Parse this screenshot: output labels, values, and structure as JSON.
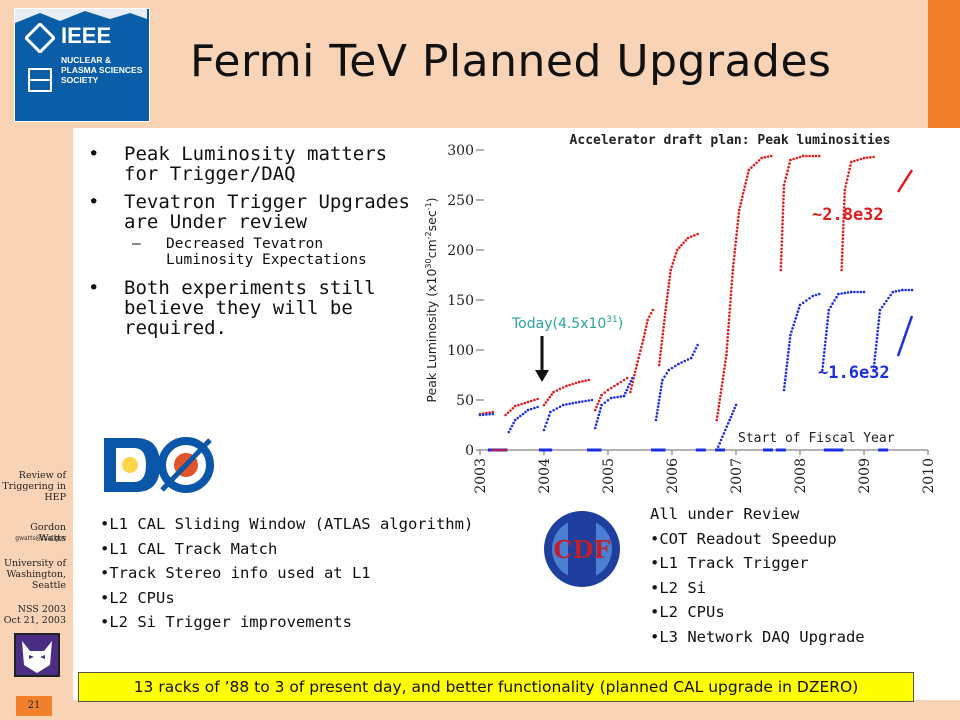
{
  "slide": {
    "title": "Fermi TeV Planned Upgrades",
    "page_number": "21"
  },
  "logo": {
    "ieee_text": "IEEE",
    "nps_text": "NUCLEAR & PLASMA SCIENCES SOCIETY"
  },
  "sidebar": {
    "lines": [
      "Review of",
      "Triggering in",
      "HEP"
    ],
    "author": "Gordon Watts",
    "email": "gwatts@fnal.gov",
    "institution": [
      "University of",
      "Washington,",
      "Seattle"
    ],
    "conference": [
      "NSS 2003",
      "Oct 21, 2003"
    ]
  },
  "bullets": {
    "b1": "Peak Luminosity matters for Trigger/DAQ",
    "b2": "Tevatron Trigger Upgrades are Under review",
    "b2_sub": "Decreased Tevatron Luminosity Expectations",
    "b3": "Both experiments still believe they will be required."
  },
  "d0_list": [
    "•L1 CAL Sliding Window (ATLAS algorithm)",
    "•L1 CAL Track Match",
    "•Track Stereo info used at L1",
    "•L2 CPUs",
    "•L2 Si Trigger  improvements"
  ],
  "cdf_list": [
    "All under Review",
    "•COT Readout Speedup",
    "•L1 Track Trigger",
    "•L2 Si",
    "•L2 CPUs",
    "•L3 Network DAQ Upgrade"
  ],
  "banner": "13 racks of ’88 to 3 of present day, and better functionality (planned CAL upgrade in DZERO)",
  "logos": {
    "cdf_text": "CDF"
  },
  "colors": {
    "red_series": "#e01b1b",
    "blue_series": "#1b2fe0",
    "today": "#2aa3a0",
    "sidebar": "#f9d3b6",
    "accent": "#f2802d"
  },
  "chart_data": {
    "type": "line",
    "title": "Accelerator draft plan: Peak luminosities",
    "ylabel_parts": [
      "Peak Luminosity (x10",
      "30",
      "cm",
      "-2",
      "sec",
      "-1",
      ")"
    ],
    "ylim": [
      0,
      300
    ],
    "yticks": [
      0,
      50,
      100,
      150,
      200,
      250,
      300
    ],
    "xlim": [
      2003,
      2010
    ],
    "xticks": [
      "2003",
      "2004",
      "2005",
      "2006",
      "2007",
      "2008",
      "2009",
      "2010"
    ],
    "series": [
      {
        "color": "#e01b1b",
        "segments": [
          [
            [
              2003.2,
              0
            ],
            [
              2003.4,
              0
            ]
          ],
          [
            [
              2003.0,
              36
            ],
            [
              2003.2,
              38
            ]
          ],
          [
            [
              2003.4,
              35
            ],
            [
              2003.55,
              44
            ],
            [
              2003.75,
              48
            ],
            [
              2003.9,
              51
            ]
          ],
          [
            [
              2004.0,
              45
            ],
            [
              2004.15,
              58
            ],
            [
              2004.35,
              64
            ],
            [
              2004.55,
              68
            ],
            [
              2004.7,
              70
            ]
          ],
          [
            [
              2004.8,
              40
            ],
            [
              2004.9,
              55
            ],
            [
              2005.0,
              60
            ],
            [
              2005.15,
              66
            ],
            [
              2005.3,
              72
            ]
          ],
          [
            [
              2005.35,
              58
            ],
            [
              2005.45,
              85
            ],
            [
              2005.55,
              110
            ],
            [
              2005.62,
              130
            ],
            [
              2005.7,
              140
            ]
          ],
          [
            [
              2005.8,
              85
            ],
            [
              2005.9,
              140
            ],
            [
              2005.98,
              180
            ],
            [
              2006.08,
              200
            ],
            [
              2006.25,
              212
            ],
            [
              2006.4,
              216
            ]
          ],
          [
            [
              2006.7,
              30
            ],
            [
              2006.85,
              95
            ],
            [
              2006.95,
              180
            ],
            [
              2007.05,
              240
            ],
            [
              2007.2,
              280
            ],
            [
              2007.4,
              292
            ],
            [
              2007.55,
              294
            ]
          ],
          [
            [
              2007.7,
              180
            ],
            [
              2007.75,
              265
            ],
            [
              2007.85,
              290
            ],
            [
              2008.05,
              294
            ],
            [
              2008.3,
              294
            ]
          ],
          [
            [
              2008.65,
              180
            ],
            [
              2008.7,
              260
            ],
            [
              2008.8,
              288
            ],
            [
              2009.0,
              292
            ],
            [
              2009.15,
              293
            ]
          ]
        ]
      },
      {
        "color": "#1b2fe0",
        "segments": [
          [
            [
              2003.0,
              35
            ],
            [
              2003.2,
              36
            ]
          ],
          [
            [
              2003.45,
              18
            ],
            [
              2003.55,
              30
            ],
            [
              2003.75,
              40
            ],
            [
              2003.9,
              43
            ]
          ],
          [
            [
              2004.0,
              20
            ],
            [
              2004.1,
              38
            ],
            [
              2004.3,
              45
            ],
            [
              2004.55,
              48
            ],
            [
              2004.75,
              50
            ]
          ],
          [
            [
              2004.8,
              22
            ],
            [
              2004.9,
              45
            ],
            [
              2005.05,
              52
            ],
            [
              2005.25,
              54
            ],
            [
              2005.38,
              72
            ]
          ],
          [
            [
              2005.75,
              30
            ],
            [
              2005.85,
              70
            ],
            [
              2005.95,
              80
            ],
            [
              2006.1,
              86
            ],
            [
              2006.3,
              92
            ],
            [
              2006.4,
              105
            ]
          ],
          [
            [
              2006.7,
              0
            ],
            [
              2006.9,
              30
            ],
            [
              2007.0,
              45
            ]
          ],
          [
            [
              2007.75,
              60
            ],
            [
              2007.85,
              115
            ],
            [
              2008.0,
              145
            ],
            [
              2008.2,
              154
            ],
            [
              2008.3,
              156
            ]
          ],
          [
            [
              2008.35,
              80
            ],
            [
              2008.45,
              140
            ],
            [
              2008.6,
              156
            ],
            [
              2008.8,
              158
            ],
            [
              2009.0,
              158
            ]
          ],
          [
            [
              2009.15,
              80
            ],
            [
              2009.25,
              140
            ],
            [
              2009.45,
              158
            ],
            [
              2009.6,
              160
            ],
            [
              2009.75,
              160
            ]
          ]
        ]
      }
    ],
    "annotations": {
      "today": "Today(4.5x10",
      "today_sup": "31",
      "today_close": ")",
      "red_value": "~2.8e32",
      "blue_value": "~1.6e32",
      "fiscal": "Start of Fiscal Year"
    },
    "fiscal_markers": [
      2003.2,
      2003.35,
      2004.0,
      2004.05,
      2004.75,
      2004.82,
      2005.75,
      2005.82,
      2006.45,
      2006.75,
      2007.5,
      2007.7,
      2008.45,
      2008.6,
      2009.3
    ]
  }
}
